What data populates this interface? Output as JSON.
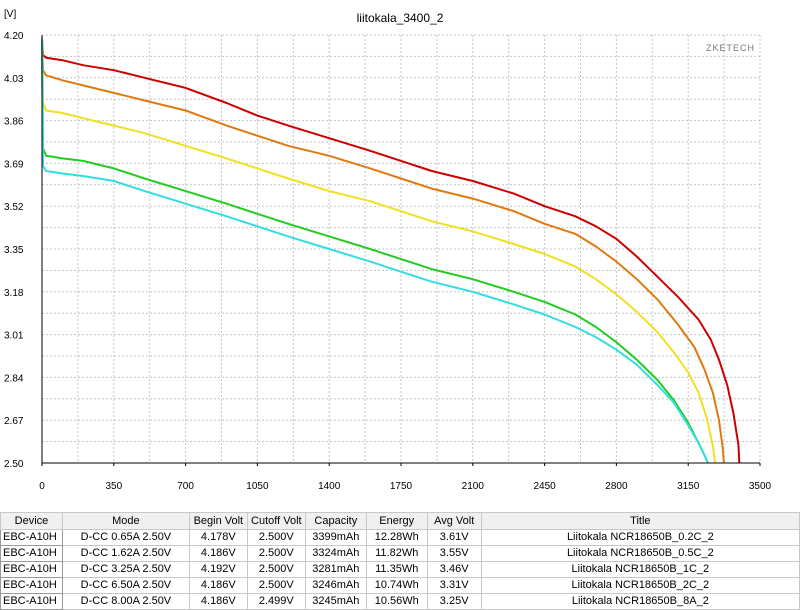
{
  "chart_data": {
    "type": "line",
    "title": "liitokala_3400_2",
    "ylabel": "[V]",
    "watermark": "ZKETECH",
    "xlim": [
      0,
      3500
    ],
    "ylim": [
      2.5,
      4.2
    ],
    "x_ticks": [
      0,
      350,
      700,
      1050,
      1400,
      1750,
      2100,
      2450,
      2800,
      3150,
      3500
    ],
    "x_tick_labels": [
      "0",
      "350",
      "700",
      "1050",
      "1400",
      "1750",
      "2100",
      "2450",
      "2800",
      "3150",
      "3500"
    ],
    "y_ticks": [
      2.5,
      2.67,
      2.84,
      3.01,
      3.18,
      3.35,
      3.52,
      3.69,
      3.86,
      4.03,
      4.2
    ],
    "y_tick_labels": [
      "2.50",
      "2.67",
      "2.84",
      "3.01",
      "3.18",
      "3.35",
      "3.52",
      "3.69",
      "3.86",
      "4.03",
      "4.20"
    ],
    "grid": true,
    "series": [
      {
        "color": "#cc0000",
        "x": [
          0,
          5,
          20,
          100,
          200,
          350,
          500,
          700,
          900,
          1050,
          1200,
          1400,
          1600,
          1750,
          1900,
          2100,
          2300,
          2450,
          2600,
          2700,
          2800,
          2900,
          3000,
          3100,
          3200,
          3260,
          3300,
          3340,
          3370,
          3395,
          3399
        ],
        "y": [
          4.178,
          4.12,
          4.11,
          4.1,
          4.08,
          4.06,
          4.03,
          3.99,
          3.93,
          3.88,
          3.84,
          3.79,
          3.74,
          3.7,
          3.66,
          3.62,
          3.57,
          3.52,
          3.48,
          3.44,
          3.39,
          3.32,
          3.24,
          3.16,
          3.07,
          2.99,
          2.91,
          2.81,
          2.7,
          2.57,
          2.5
        ]
      },
      {
        "color": "#e07a10",
        "x": [
          0,
          5,
          20,
          100,
          200,
          350,
          500,
          700,
          900,
          1050,
          1200,
          1400,
          1600,
          1750,
          1900,
          2100,
          2300,
          2450,
          2600,
          2700,
          2800,
          2900,
          3000,
          3100,
          3180,
          3230,
          3270,
          3300,
          3318,
          3324
        ],
        "y": [
          4.186,
          4.06,
          4.04,
          4.02,
          4.0,
          3.97,
          3.94,
          3.9,
          3.84,
          3.8,
          3.76,
          3.72,
          3.67,
          3.63,
          3.59,
          3.55,
          3.5,
          3.45,
          3.41,
          3.36,
          3.3,
          3.23,
          3.15,
          3.05,
          2.96,
          2.87,
          2.78,
          2.67,
          2.56,
          2.5
        ]
      },
      {
        "color": "#f0e020",
        "x": [
          0,
          5,
          20,
          100,
          200,
          350,
          500,
          700,
          900,
          1050,
          1200,
          1400,
          1600,
          1750,
          1900,
          2100,
          2300,
          2450,
          2600,
          2700,
          2800,
          2900,
          3000,
          3080,
          3150,
          3200,
          3240,
          3270,
          3281
        ],
        "y": [
          4.192,
          3.93,
          3.9,
          3.89,
          3.87,
          3.84,
          3.81,
          3.76,
          3.71,
          3.67,
          3.63,
          3.58,
          3.54,
          3.5,
          3.46,
          3.42,
          3.37,
          3.33,
          3.28,
          3.23,
          3.17,
          3.1,
          3.02,
          2.94,
          2.86,
          2.78,
          2.68,
          2.57,
          2.5
        ]
      },
      {
        "color": "#22cc22",
        "x": [
          0,
          5,
          20,
          100,
          200,
          350,
          500,
          700,
          900,
          1050,
          1200,
          1400,
          1600,
          1750,
          1900,
          2100,
          2300,
          2450,
          2600,
          2700,
          2800,
          2900,
          3000,
          3080,
          3150,
          3200,
          3230,
          3246
        ],
        "y": [
          4.186,
          3.75,
          3.72,
          3.71,
          3.7,
          3.67,
          3.63,
          3.58,
          3.53,
          3.49,
          3.45,
          3.4,
          3.35,
          3.31,
          3.27,
          3.23,
          3.18,
          3.14,
          3.09,
          3.04,
          2.98,
          2.91,
          2.83,
          2.75,
          2.66,
          2.58,
          2.53,
          2.5
        ]
      },
      {
        "color": "#33dde0",
        "x": [
          0,
          5,
          20,
          100,
          200,
          350,
          500,
          700,
          900,
          1050,
          1200,
          1400,
          1600,
          1750,
          1900,
          2100,
          2300,
          2450,
          2600,
          2700,
          2800,
          2900,
          3000,
          3080,
          3150,
          3200,
          3230,
          3245
        ],
        "y": [
          4.186,
          3.68,
          3.66,
          3.65,
          3.64,
          3.62,
          3.58,
          3.53,
          3.48,
          3.44,
          3.4,
          3.35,
          3.3,
          3.26,
          3.22,
          3.18,
          3.13,
          3.09,
          3.04,
          3.0,
          2.95,
          2.89,
          2.81,
          2.74,
          2.65,
          2.58,
          2.53,
          2.5
        ]
      }
    ]
  },
  "table": {
    "headers": [
      "Device",
      "Mode",
      "Begin Volt",
      "Cutoff Volt",
      "Capacity",
      "Energy",
      "Avg Volt",
      "Title"
    ],
    "rows": [
      [
        "EBC-A10H",
        "D-CC  0.65A  2.50V",
        "4.178V",
        "2.500V",
        "3399mAh",
        "12.28Wh",
        "3.61V",
        "Liitokala NCR18650B_0.2C_2"
      ],
      [
        "EBC-A10H",
        "D-CC  1.62A  2.50V",
        "4.186V",
        "2.500V",
        "3324mAh",
        "11.82Wh",
        "3.55V",
        "Liitokala NCR18650B_0.5C_2"
      ],
      [
        "EBC-A10H",
        "D-CC  3.25A  2.50V",
        "4.192V",
        "2.500V",
        "3281mAh",
        "11.35Wh",
        "3.46V",
        "Liitokala NCR18650B_1C_2"
      ],
      [
        "EBC-A10H",
        "D-CC  6.50A  2.50V",
        "4.186V",
        "2.500V",
        "3246mAh",
        "10.74Wh",
        "3.31V",
        "Liitokala NCR18650B_2C_2"
      ],
      [
        "EBC-A10H",
        "D-CC  8.00A  2.50V",
        "4.186V",
        "2.499V",
        "3245mAh",
        "10.56Wh",
        "3.25V",
        "Liitokala NCR18650B_8A_2"
      ]
    ]
  }
}
